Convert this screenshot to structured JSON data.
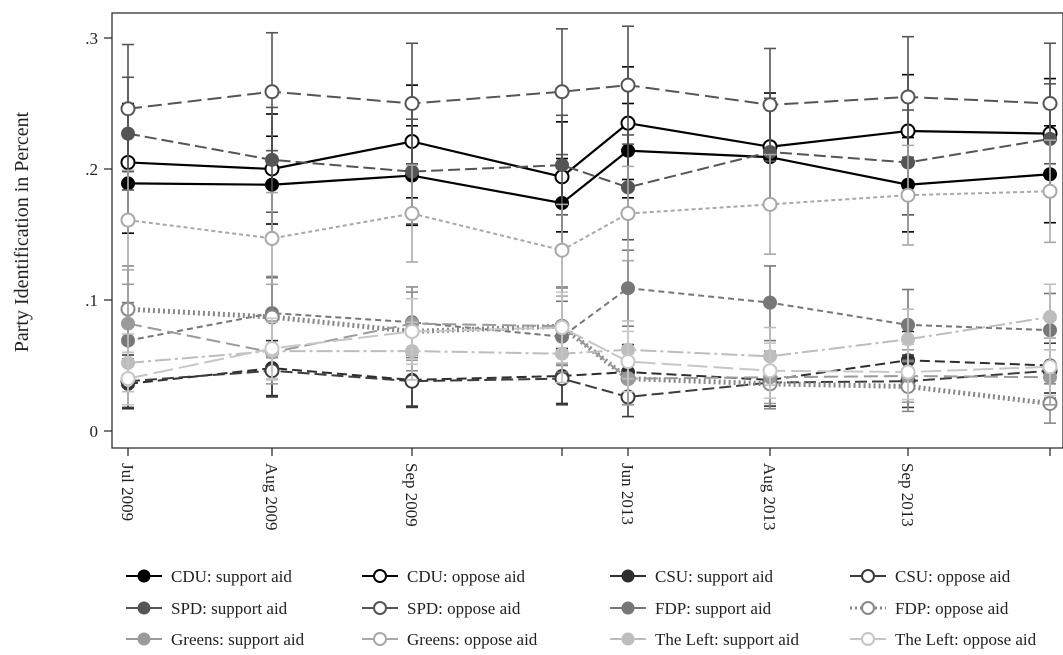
{
  "chart_data": {
    "type": "line",
    "title": "",
    "xlabel": "",
    "ylabel": "Party Identification in Percent",
    "categories": [
      "Jul 2009",
      "Aug 2009",
      "Sep 2009",
      "",
      "Jun 2013",
      "Aug 2013",
      "Sep 2013",
      ""
    ],
    "y_ticks": [
      0,
      0.1,
      0.2,
      0.3
    ],
    "y_tick_labels": [
      "0",
      ".1",
      ".2",
      ".3"
    ],
    "ylim": [
      -0.012,
      0.32
    ],
    "grid": false,
    "legend_position": "bottom",
    "error_bars": true,
    "series": [
      {
        "name": "CDU: support aid",
        "color": "#000000",
        "marker": "filled",
        "dash": "solid",
        "width": 2.2,
        "values": [
          0.189,
          0.188,
          0.195,
          0.174,
          0.214,
          0.209,
          0.188,
          0.196
        ],
        "lo": [
          0.151,
          0.15,
          0.157,
          0.14,
          0.178,
          0.171,
          0.152,
          0.159
        ],
        "hi": [
          0.227,
          0.225,
          0.233,
          0.208,
          0.25,
          0.247,
          0.224,
          0.233
        ]
      },
      {
        "name": "CDU: oppose aid",
        "color": "#000000",
        "marker": "hollow",
        "dash": "solid",
        "width": 2.2,
        "values": [
          0.205,
          0.2,
          0.221,
          0.194,
          0.235,
          0.217,
          0.229,
          0.227
        ],
        "lo": [
          0.16,
          0.158,
          0.178,
          0.152,
          0.192,
          0.176,
          0.186,
          0.185
        ],
        "hi": [
          0.25,
          0.242,
          0.264,
          0.236,
          0.278,
          0.258,
          0.272,
          0.269
        ]
      },
      {
        "name": "CSU: support aid",
        "color": "#2e2e2e",
        "marker": "filled",
        "dash": "10,5",
        "width": 2,
        "values": [
          0.036,
          0.048,
          0.039,
          0.042,
          0.045,
          0.039,
          0.054,
          0.05
        ],
        "lo": [
          0.017,
          0.027,
          0.019,
          0.021,
          0.024,
          0.019,
          0.032,
          0.029
        ],
        "hi": [
          0.055,
          0.069,
          0.059,
          0.063,
          0.066,
          0.059,
          0.076,
          0.071
        ]
      },
      {
        "name": "CSU: oppose aid",
        "color": "#3c3c3c",
        "marker": "hollow",
        "dash": "12,5",
        "width": 2,
        "values": [
          0.038,
          0.046,
          0.038,
          0.04,
          0.026,
          0.037,
          0.038,
          0.046
        ],
        "lo": [
          0.018,
          0.026,
          0.018,
          0.02,
          0.011,
          0.017,
          0.018,
          0.025
        ],
        "hi": [
          0.058,
          0.066,
          0.058,
          0.06,
          0.041,
          0.057,
          0.058,
          0.067
        ]
      },
      {
        "name": "SPD: support aid",
        "color": "#555555",
        "marker": "filled",
        "dash": "12,5",
        "width": 2,
        "values": [
          0.227,
          0.207,
          0.198,
          0.203,
          0.186,
          0.213,
          0.205,
          0.223
        ],
        "lo": [
          0.184,
          0.167,
          0.158,
          0.165,
          0.146,
          0.172,
          0.165,
          0.181
        ],
        "hi": [
          0.27,
          0.247,
          0.238,
          0.241,
          0.226,
          0.254,
          0.245,
          0.265
        ]
      },
      {
        "name": "SPD: oppose aid",
        "color": "#555555",
        "marker": "hollow",
        "dash": "14,6",
        "width": 2,
        "values": [
          0.246,
          0.259,
          0.25,
          0.259,
          0.264,
          0.249,
          0.255,
          0.25
        ],
        "lo": [
          0.198,
          0.214,
          0.204,
          0.211,
          0.219,
          0.206,
          0.209,
          0.204
        ],
        "hi": [
          0.295,
          0.304,
          0.296,
          0.307,
          0.309,
          0.292,
          0.301,
          0.296
        ]
      },
      {
        "name": "FDP: support aid",
        "color": "#777777",
        "marker": "filled",
        "dash": "6,4",
        "width": 2,
        "values": [
          0.069,
          0.09,
          0.083,
          0.072,
          0.109,
          0.098,
          0.081,
          0.077
        ],
        "lo": [
          0.04,
          0.063,
          0.056,
          0.045,
          0.08,
          0.069,
          0.054,
          0.049
        ],
        "hi": [
          0.098,
          0.117,
          0.11,
          0.099,
          0.138,
          0.126,
          0.108,
          0.105
        ]
      },
      {
        "name": "FDP: oppose aid",
        "color": "#888888",
        "marker": "hollow",
        "dash": "2,3",
        "width": 5,
        "values": [
          0.093,
          0.087,
          0.076,
          0.08,
          0.04,
          0.036,
          0.034,
          0.021
        ],
        "lo": [
          0.06,
          0.056,
          0.046,
          0.05,
          0.02,
          0.017,
          0.015,
          0.006
        ],
        "hi": [
          0.126,
          0.118,
          0.106,
          0.11,
          0.06,
          0.055,
          0.053,
          0.036
        ]
      },
      {
        "name": "Greens: support aid",
        "color": "#9a9a9a",
        "marker": "filled",
        "dash": "14,6",
        "width": 2,
        "values": [
          0.082,
          0.06,
          0.082,
          0.08,
          0.04,
          0.041,
          0.042,
          0.041
        ],
        "lo": [
          0.052,
          0.036,
          0.054,
          0.051,
          0.02,
          0.021,
          0.022,
          0.02
        ],
        "hi": [
          0.112,
          0.084,
          0.11,
          0.109,
          0.06,
          0.061,
          0.062,
          0.062
        ]
      },
      {
        "name": "Greens: oppose aid",
        "color": "#a8a8a8",
        "marker": "hollow",
        "dash": "4,3",
        "width": 2,
        "values": [
          0.161,
          0.147,
          0.166,
          0.138,
          0.166,
          0.173,
          0.18,
          0.183
        ],
        "lo": [
          0.123,
          0.112,
          0.129,
          0.103,
          0.13,
          0.135,
          0.142,
          0.144
        ],
        "hi": [
          0.199,
          0.182,
          0.203,
          0.173,
          0.202,
          0.211,
          0.218,
          0.222
        ]
      },
      {
        "name": "The Left: support aid",
        "color": "#bdbdbd",
        "marker": "filled",
        "dash": "16,4,3,4",
        "width": 2,
        "values": [
          0.052,
          0.061,
          0.061,
          0.059,
          0.062,
          0.057,
          0.07,
          0.087
        ],
        "lo": [
          0.03,
          0.039,
          0.039,
          0.037,
          0.04,
          0.035,
          0.047,
          0.062
        ],
        "hi": [
          0.074,
          0.083,
          0.083,
          0.081,
          0.084,
          0.079,
          0.093,
          0.112
        ]
      },
      {
        "name": "The Left: oppose aid",
        "color": "#c6c6c6",
        "marker": "hollow",
        "dash": "20,6",
        "width": 2,
        "values": [
          0.04,
          0.063,
          0.076,
          0.079,
          0.053,
          0.046,
          0.045,
          0.049
        ],
        "lo": [
          0.02,
          0.04,
          0.051,
          0.052,
          0.03,
          0.025,
          0.024,
          0.027
        ],
        "hi": [
          0.06,
          0.086,
          0.101,
          0.106,
          0.076,
          0.067,
          0.066,
          0.071
        ]
      }
    ]
  }
}
